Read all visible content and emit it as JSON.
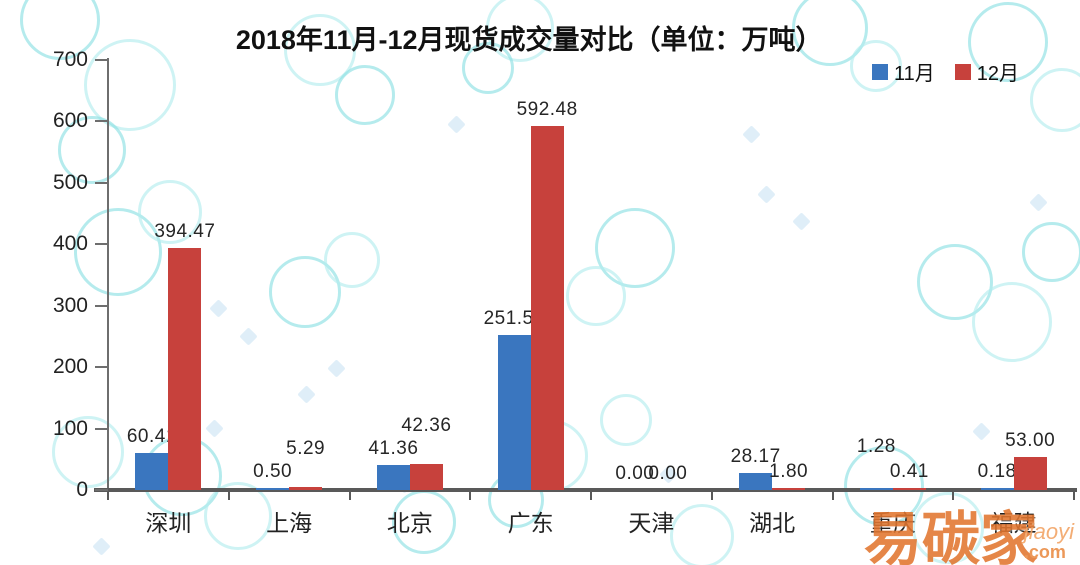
{
  "title": "2018年11月-12月现货成交量对比（单位：万吨）",
  "legend": [
    {
      "label": "11月",
      "color": "#3a76bf"
    },
    {
      "label": "12月",
      "color": "#c7413c"
    }
  ],
  "watermark": {
    "brand": "易碳家",
    "domain_top": "jiaoyi",
    "domain_bottom": ".com"
  },
  "chart_data": {
    "type": "bar",
    "title": "2018年11月-12月现货成交量对比（单位：万吨）",
    "unit": "万吨",
    "categories": [
      "深圳",
      "上海",
      "北京",
      "广东",
      "天津",
      "湖北",
      "重庆",
      "福建"
    ],
    "series": [
      {
        "name": "11月",
        "color": "#3a76bf",
        "values": [
          60.41,
          0.5,
          41.36,
          251.52,
          0.0,
          28.17,
          1.28,
          0.18
        ]
      },
      {
        "name": "12月",
        "color": "#c7413c",
        "values": [
          394.47,
          5.29,
          42.36,
          592.48,
          0.0,
          1.8,
          0.41,
          53.0
        ]
      }
    ],
    "ylim": [
      0,
      700
    ],
    "yticks": [
      0,
      100,
      200,
      300,
      400,
      500,
      600,
      700
    ],
    "legend_position": "top-right",
    "grid": false,
    "value_labels": true,
    "value_label_decimals": 2
  }
}
